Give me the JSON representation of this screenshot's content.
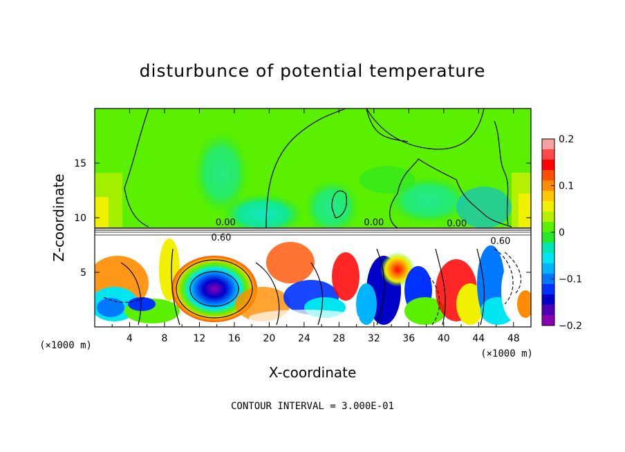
{
  "chart_data": {
    "type": "heatmap",
    "title": "disturbunce of potential temperature",
    "xlabel": "X-coordinate",
    "ylabel": "Z-coordinate",
    "x_unit": "(×1000 m)",
    "z_unit": "(×1000 m)",
    "xlim": [
      0,
      50
    ],
    "zlim": [
      0,
      20
    ],
    "x_ticks": [
      4,
      8,
      12,
      16,
      20,
      24,
      28,
      32,
      36,
      40,
      44,
      48
    ],
    "z_ticks": [
      5,
      10,
      15
    ],
    "colorbar": {
      "range": [
        -0.2,
        0.2
      ],
      "ticks": [
        0.2,
        0.1,
        0,
        -0.1,
        -0.2
      ],
      "tick_labels": [
        "0.2",
        "0.1",
        "0",
        "−0.1",
        "−0.2"
      ],
      "colors": [
        "#f7a0a0",
        "#ff4a4a",
        "#ff0000",
        "#ff5000",
        "#ff8c00",
        "#ffc800",
        "#f0f000",
        "#b4f000",
        "#5af000",
        "#28e628",
        "#00e6b4",
        "#00e6f0",
        "#00b4ff",
        "#0078ff",
        "#0032ff",
        "#0000c8",
        "#5000b4",
        "#8c00b4"
      ]
    },
    "contour_labels": [
      {
        "text": "0.00",
        "x": 15,
        "z": 9.3
      },
      {
        "text": "0.00",
        "x": 32,
        "z": 9.3
      },
      {
        "text": "0.00",
        "x": 41.5,
        "z": 9.2
      },
      {
        "text": "0.60",
        "x": 14.5,
        "z": 7.9
      },
      {
        "text": "0.60",
        "x": 46.5,
        "z": 7.6
      }
    ],
    "contour_interval_text": "CONTOUR INTERVAL = 3.000E-01"
  }
}
